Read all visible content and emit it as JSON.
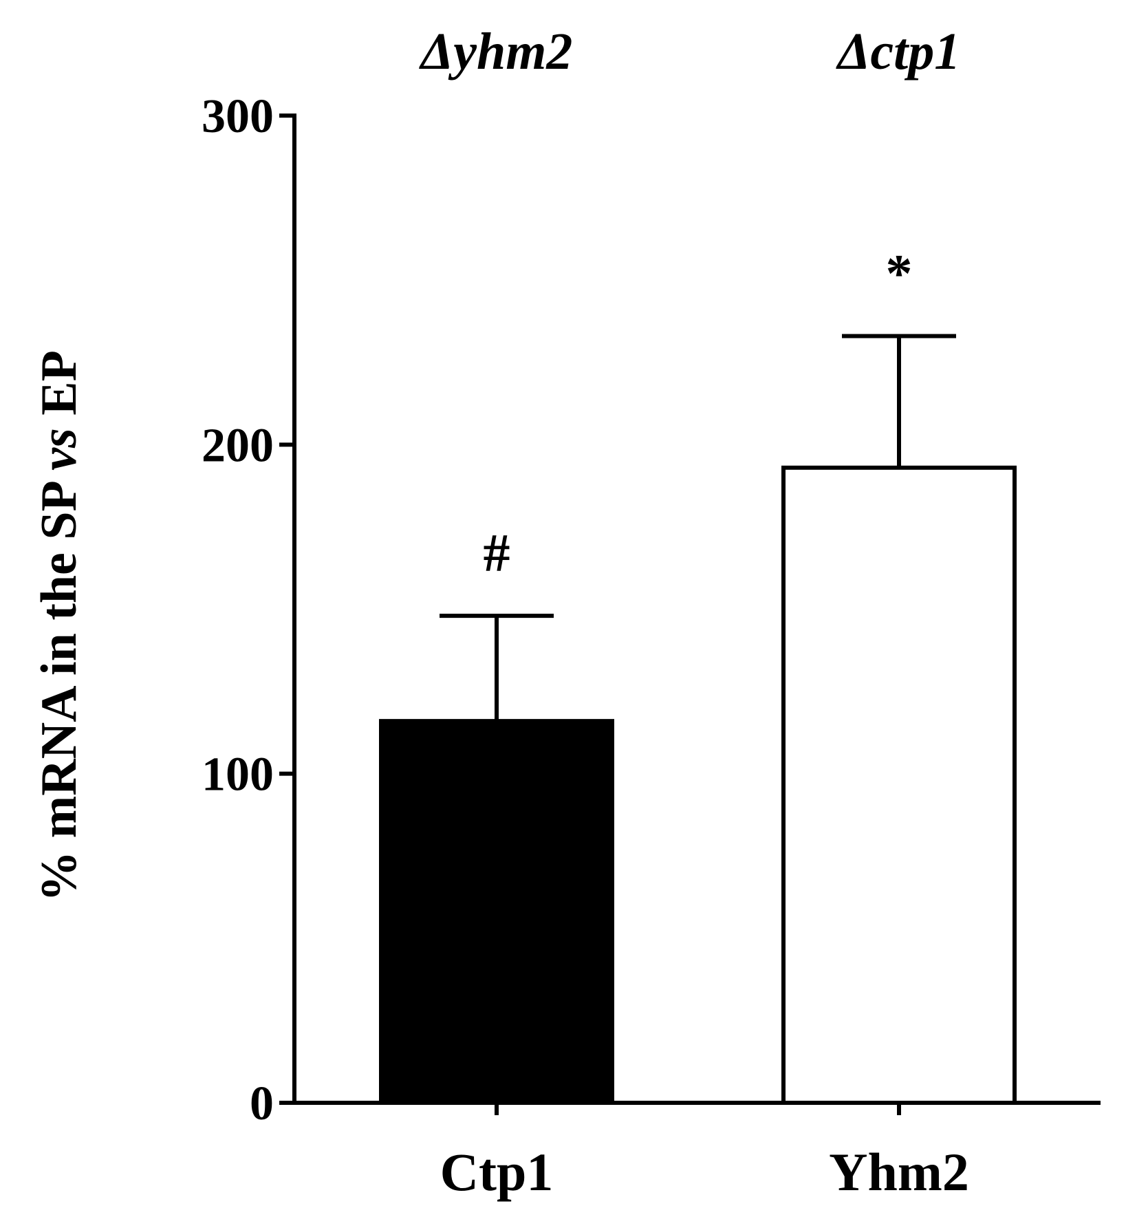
{
  "chart_data": {
    "type": "bar",
    "title": "",
    "categories": [
      "Ctp1",
      "Yhm2"
    ],
    "group_labels": [
      "Δyhm2",
      "Δctp1"
    ],
    "values": [
      116,
      193
    ],
    "errors": [
      32,
      40
    ],
    "annotations": [
      "#",
      "*"
    ],
    "bar_fills": [
      "#000000",
      "#ffffff"
    ],
    "ylabel_parts": [
      "% mRNA in the SP ",
      "vs",
      " EP"
    ],
    "xlabel": "",
    "ylim": [
      0,
      300
    ],
    "yticks": [
      0,
      100,
      200,
      300
    ],
    "ytick_labels": [
      "0",
      "100",
      "200",
      "300"
    ],
    "grid": false,
    "legend": "none"
  }
}
